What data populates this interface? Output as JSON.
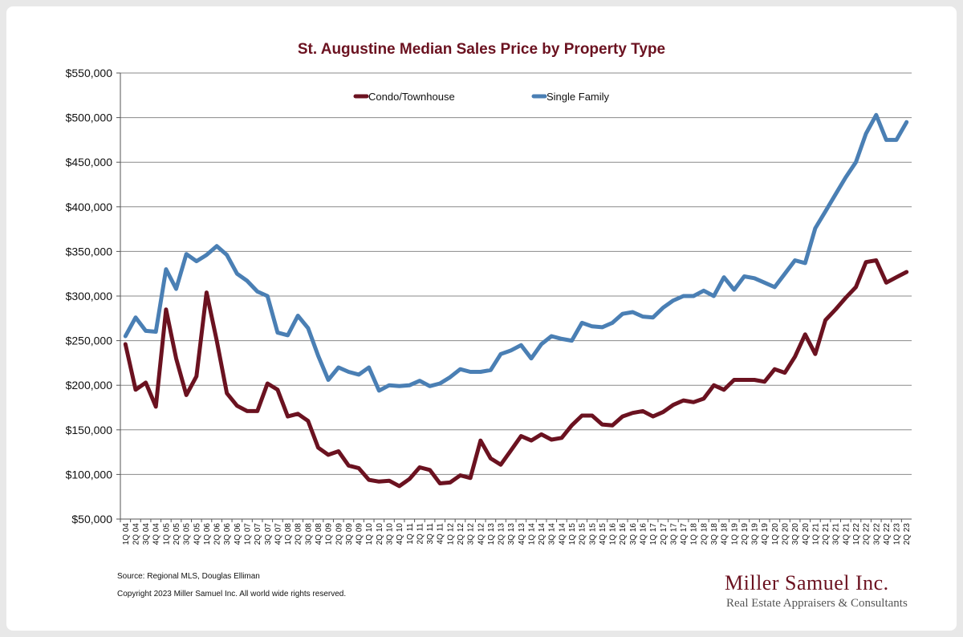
{
  "chart_data": {
    "type": "line",
    "title": "St. Augustine Median Sales Price by Property Type",
    "xlabel": "",
    "ylabel": "",
    "ylim": [
      50000,
      550000
    ],
    "yticks": [
      "$50,000",
      "$100,000",
      "$150,000",
      "$200,000",
      "$250,000",
      "$300,000",
      "$350,000",
      "$400,000",
      "$450,000",
      "$500,000",
      "$550,000"
    ],
    "grid": true,
    "legend": "top-center",
    "categories": [
      "1Q 04",
      "2Q 04",
      "3Q 04",
      "4Q 04",
      "1Q 05",
      "2Q 05",
      "3Q 05",
      "4Q 05",
      "1Q 06",
      "2Q 06",
      "3Q 06",
      "4Q 06",
      "1Q 07",
      "2Q 07",
      "3Q 07",
      "4Q 07",
      "1Q 08",
      "2Q 08",
      "3Q 08",
      "4Q 08",
      "1Q 09",
      "2Q 09",
      "3Q 09",
      "4Q 09",
      "1Q 10",
      "2Q 10",
      "3Q 10",
      "4Q 10",
      "1Q 11",
      "2Q 11",
      "3Q 11",
      "4Q 11",
      "1Q 12",
      "2Q 12",
      "3Q 12",
      "4Q 12",
      "1Q 13",
      "2Q 13",
      "3Q 13",
      "4Q 13",
      "1Q 14",
      "2Q 14",
      "3Q 14",
      "4Q 14",
      "1Q 15",
      "2Q 15",
      "3Q 15",
      "4Q 15",
      "1Q 16",
      "2Q 16",
      "3Q 16",
      "4Q 16",
      "1Q 17",
      "2Q 17",
      "3Q 17",
      "4Q 17",
      "1Q 18",
      "2Q 18",
      "3Q 18",
      "4Q 18",
      "1Q 19",
      "2Q 19",
      "3Q 19",
      "4Q 19",
      "1Q 20",
      "2Q 20",
      "3Q 20",
      "4Q 20",
      "1Q 21",
      "2Q 21",
      "3Q 21",
      "4Q 21",
      "1Q 22",
      "2Q 22",
      "3Q 22",
      "4Q 22",
      "1Q 23",
      "2Q 23"
    ],
    "series": [
      {
        "name": "Condo/Townhouse",
        "color": "#6b1220",
        "values": [
          246000,
          195000,
          203000,
          176000,
          285000,
          230000,
          189000,
          210000,
          304000,
          250000,
          191000,
          177000,
          171000,
          171000,
          202000,
          195000,
          165000,
          168000,
          160000,
          130000,
          122000,
          126000,
          110000,
          107000,
          94000,
          92000,
          93000,
          87000,
          95000,
          108000,
          105000,
          90000,
          91000,
          99000,
          96000,
          138000,
          118000,
          111000,
          127000,
          143000,
          138000,
          145000,
          139000,
          141000,
          155000,
          166000,
          166000,
          156000,
          155000,
          165000,
          169000,
          171000,
          165000,
          170000,
          178000,
          183000,
          181000,
          185000,
          200000,
          195000,
          206000,
          206000,
          206000,
          204000,
          218000,
          214000,
          232000,
          257000,
          235000,
          273000,
          285000,
          298000,
          310000,
          338000,
          340000,
          315000,
          321000,
          327000
        ]
      },
      {
        "name": "Single Family",
        "color": "#4a7fb4",
        "values": [
          255000,
          276000,
          261000,
          260000,
          330000,
          308000,
          347000,
          339000,
          346000,
          356000,
          346000,
          325000,
          317000,
          305000,
          300000,
          259000,
          256000,
          278000,
          264000,
          233000,
          206000,
          220000,
          215000,
          212000,
          220000,
          194000,
          200000,
          199000,
          200000,
          205000,
          199000,
          202000,
          209000,
          218000,
          215000,
          215000,
          217000,
          235000,
          239000,
          245000,
          230000,
          246000,
          255000,
          252000,
          250000,
          270000,
          266000,
          265000,
          270000,
          280000,
          282000,
          277000,
          276000,
          287000,
          295000,
          300000,
          300000,
          306000,
          300000,
          321000,
          307000,
          322000,
          320000,
          315000,
          310000,
          325000,
          340000,
          337000,
          376000,
          395000,
          414000,
          433000,
          450000,
          482000,
          503000,
          475000,
          475000,
          495000
        ]
      }
    ]
  },
  "footer": {
    "source": "Source: Regional MLS, Douglas Elliman",
    "copyright": "Copyright 2023 Miller Samuel Inc.  All world wide rights reserved."
  },
  "brand": {
    "name": "Miller Samuel Inc.",
    "tagline": "Real Estate Appraisers & Consultants"
  }
}
